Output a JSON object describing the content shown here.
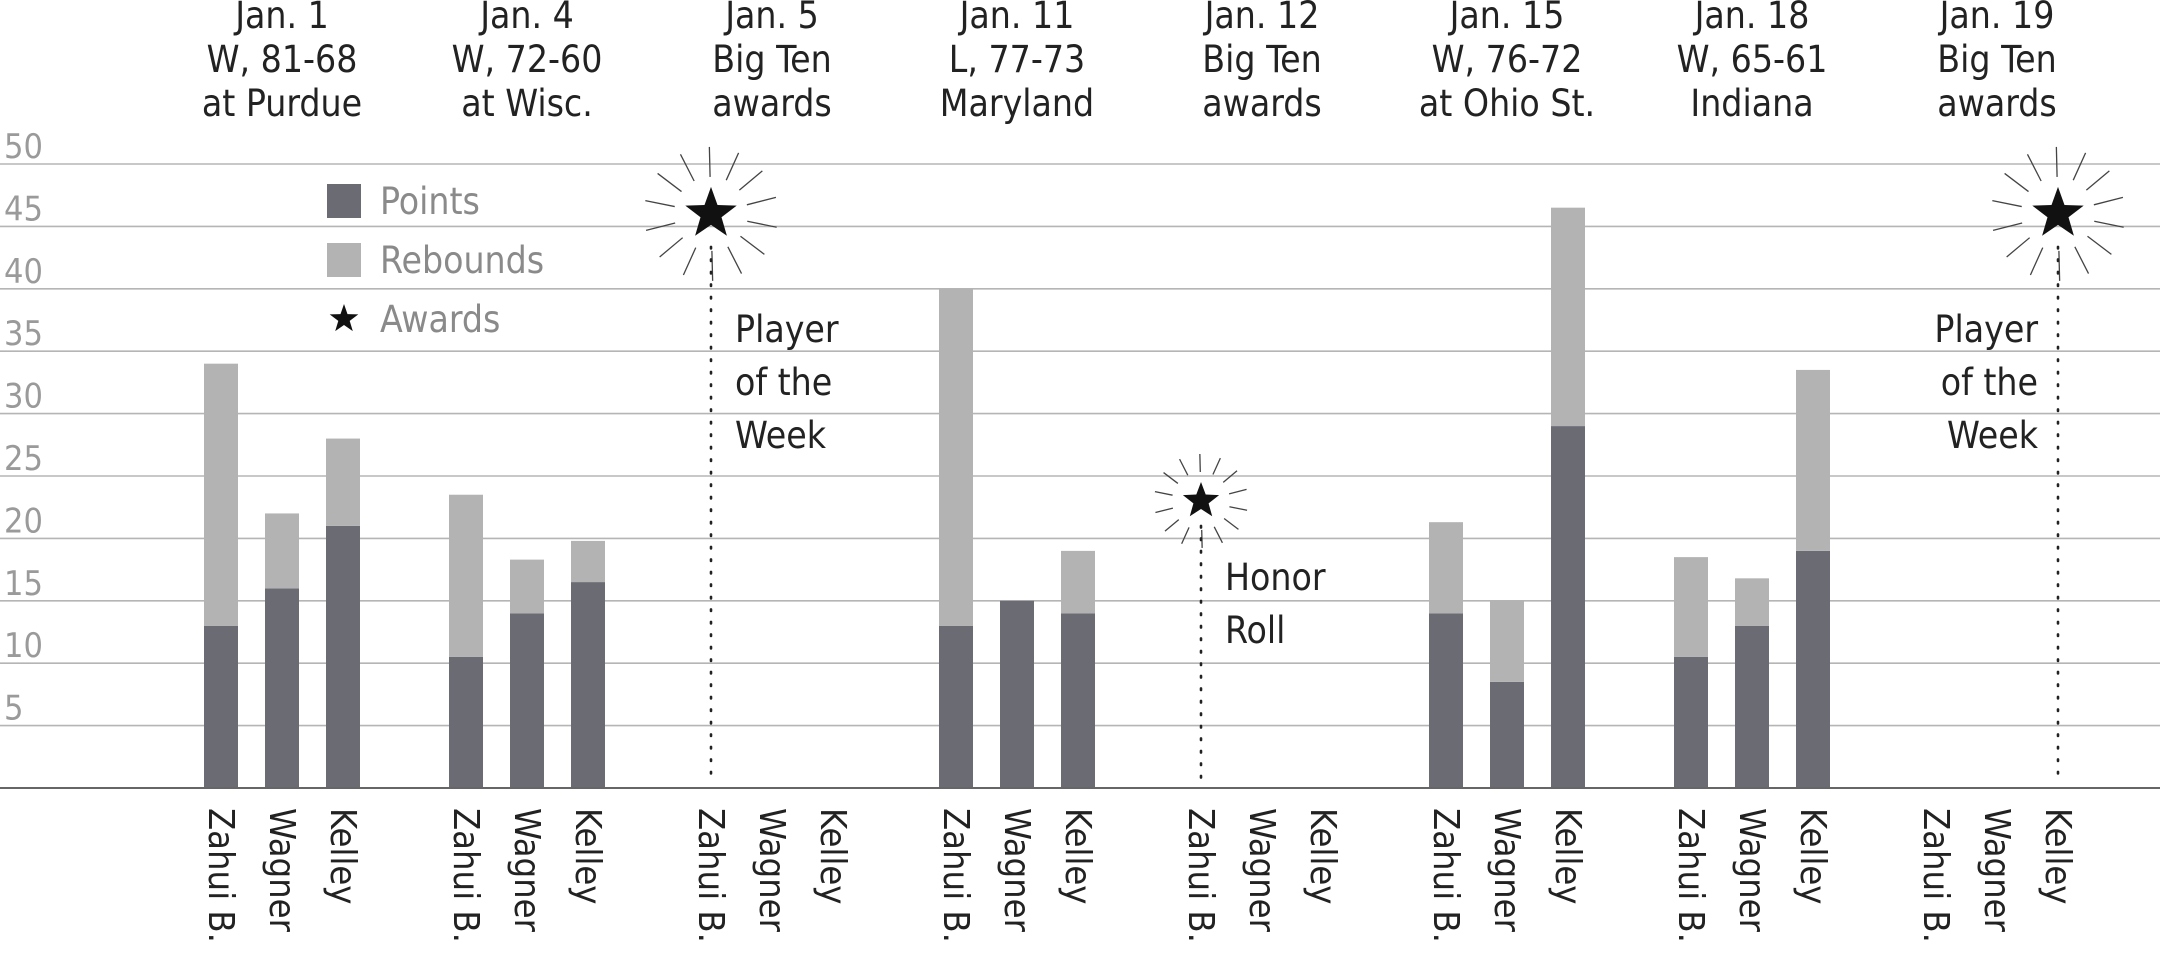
{
  "chart_data": {
    "type": "bar",
    "stacked": true,
    "ylim": [
      0,
      50
    ],
    "yticks": [
      5,
      10,
      15,
      20,
      25,
      30,
      35,
      40,
      45,
      50
    ],
    "grid": true,
    "legend": {
      "position": "top-left",
      "items": [
        {
          "label": "Points",
          "color": "#6b6b73",
          "kind": "box"
        },
        {
          "label": "Rebounds",
          "color": "#b3b3b3",
          "kind": "box"
        },
        {
          "label": "Awards",
          "color": "#111111",
          "kind": "star"
        }
      ]
    },
    "players": [
      "Zahui B.",
      "Wagner",
      "Kelley"
    ],
    "games": [
      {
        "date": "Jan. 1",
        "result": "W, 81-68",
        "opponent": "at Purdue",
        "points": [
          13,
          16,
          21
        ],
        "rebounds": [
          21,
          6,
          7
        ]
      },
      {
        "date": "Jan. 4",
        "result": "W, 72-60",
        "opponent": "at Wisc.",
        "points": [
          10.5,
          14,
          16.5
        ],
        "rebounds": [
          13,
          4.3,
          3.3
        ]
      },
      {
        "date": "Jan. 5",
        "result": "Big Ten",
        "opponent": "awards",
        "points": [
          0,
          0,
          0
        ],
        "rebounds": [
          0,
          0,
          0
        ],
        "award": {
          "player": "Zahui B.",
          "label": [
            "Player",
            "of the",
            "Week"
          ],
          "star_value": 46,
          "big": true
        }
      },
      {
        "date": "Jan. 11",
        "result": "L, 77-73",
        "opponent": "Maryland",
        "points": [
          13,
          15,
          14
        ],
        "rebounds": [
          27,
          0,
          5
        ]
      },
      {
        "date": "Jan. 12",
        "result": "Big Ten",
        "opponent": "awards",
        "points": [
          0,
          0,
          0
        ],
        "rebounds": [
          0,
          0,
          0
        ],
        "award": {
          "player": "Zahui B.",
          "label": [
            "Honor",
            "Roll"
          ],
          "star_value": 23,
          "big": false
        }
      },
      {
        "date": "Jan. 15",
        "result": "W, 76-72",
        "opponent": "at Ohio St.",
        "points": [
          14,
          8.5,
          29
        ],
        "rebounds": [
          7.3,
          6.5,
          17.5
        ]
      },
      {
        "date": "Jan. 18",
        "result": "W, 65-61",
        "opponent": "Indiana",
        "points": [
          10.5,
          13,
          19
        ],
        "rebounds": [
          8,
          3.8,
          14.5
        ]
      },
      {
        "date": "Jan. 19",
        "result": "Big Ten",
        "opponent": "awards",
        "points": [
          0,
          0,
          0
        ],
        "rebounds": [
          0,
          0,
          0
        ],
        "award": {
          "player": "Kelley",
          "label": [
            "Player",
            "of the",
            "Week"
          ],
          "star_value": 46,
          "big": true
        }
      }
    ]
  }
}
